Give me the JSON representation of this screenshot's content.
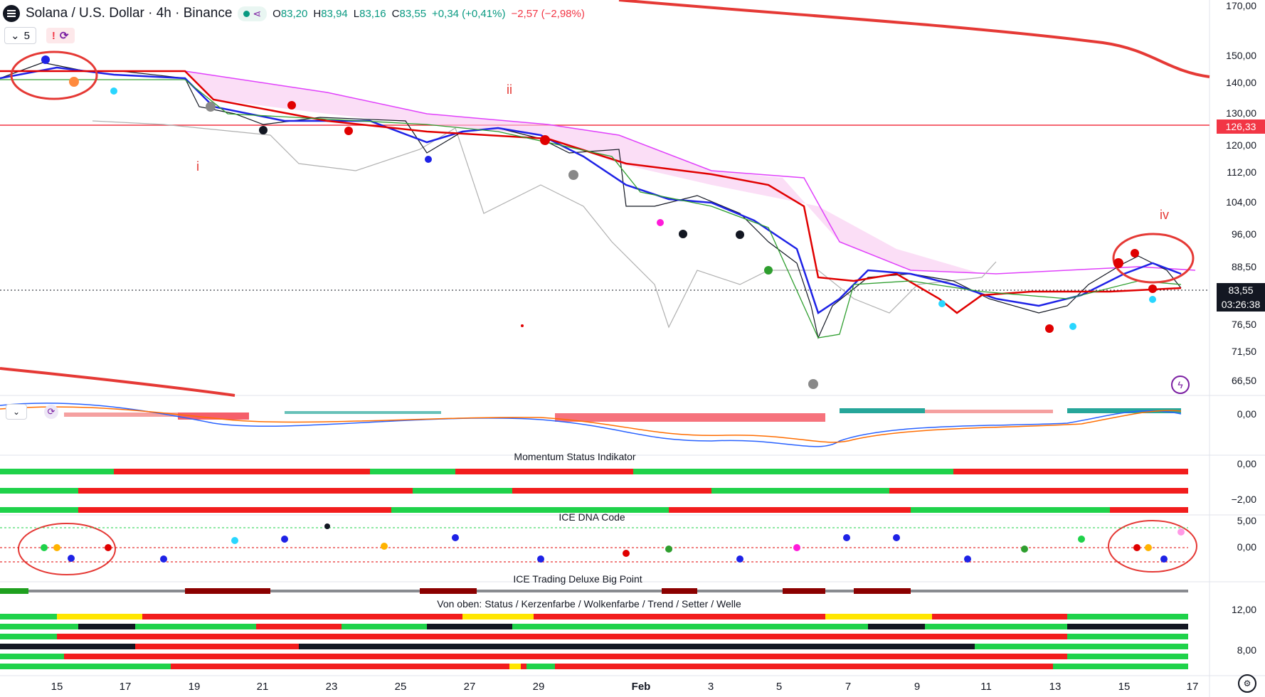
{
  "header": {
    "symbol_title": "Solana / U.S. Dollar · 4h · Binance",
    "open_label": "O",
    "open": "83,20",
    "high_label": "H",
    "high": "83,94",
    "low_label": "L",
    "low": "83,16",
    "close_label": "C",
    "close": "83,55",
    "change": "+0,34 (+0,41%)",
    "change2": "−2,57 (−2,98%)",
    "interval_chip": "5",
    "warn_icon": "!"
  },
  "price_axis": [
    "170,00",
    "150,00",
    "140,00",
    "130,00",
    "120,00",
    "112,00",
    "104,00",
    "96,00",
    "88,50",
    "76,50",
    "71,50",
    "66,50"
  ],
  "price_tags": {
    "level": "126,33",
    "last": "83,55",
    "countdown": "03:26:38"
  },
  "macd_axis": "0,00",
  "momentum_axis": [
    "0,00",
    "−2,00"
  ],
  "dna_axis": [
    "5,00",
    "0,00"
  ],
  "status_axis": [
    "12,00",
    "8,00"
  ],
  "x_axis": [
    "15",
    "17",
    "19",
    "21",
    "23",
    "25",
    "27",
    "29",
    "Feb",
    "3",
    "5",
    "7",
    "9",
    "11",
    "13",
    "15",
    "17"
  ],
  "pane_titles": {
    "momentum": "Momentum Status Indikator",
    "dna": "ICE DNA Code",
    "bigpoint": "ICE Trading Deluxe Big Point",
    "status": "Von oben: Status / Kerzenfarbe / Wolkenfarbe / Trend / Setter / Welle"
  },
  "wave_labels": [
    "i",
    "ii",
    "iv"
  ],
  "icons": [
    "solana-logo",
    "chevron-down-icon",
    "warning-icon",
    "refresh-icon",
    "lightning-icon",
    "settings-icon"
  ],
  "colors": {
    "up": "#089981",
    "down": "#f23645",
    "annotation": "#e53935",
    "cloud": "#f8c8f0"
  }
}
